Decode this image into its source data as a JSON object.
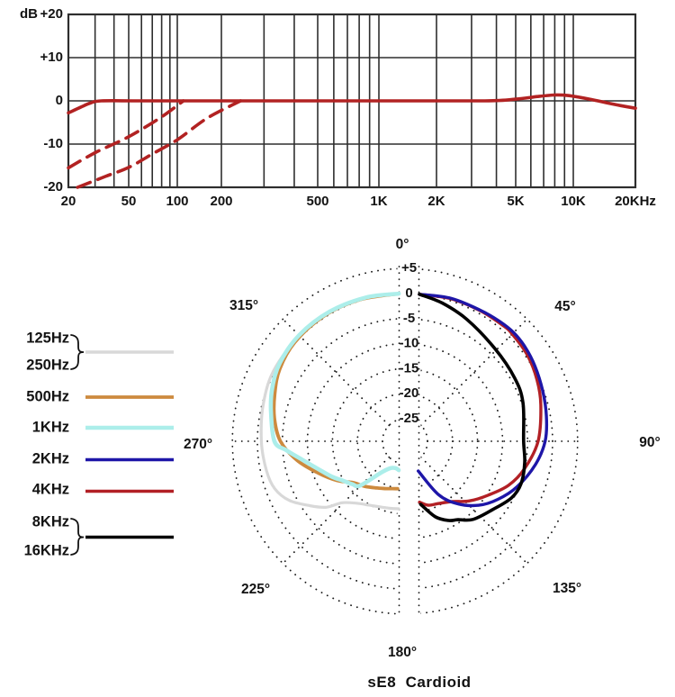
{
  "page": {
    "background": "#ffffff",
    "text_color": "#1a1a1a"
  },
  "title": "sE8  Cardioid",
  "chart_data": [
    {
      "type": "line",
      "name": "frequency_response",
      "y_unit_label": "dB",
      "xlim": [
        20,
        20000
      ],
      "ylim": [
        -20,
        20
      ],
      "grid": true,
      "grid_color": "#2e2e2e",
      "line_color": "#b22222",
      "x_ticks": [
        {
          "value": 20,
          "label": "20"
        },
        {
          "value": 50,
          "label": "50"
        },
        {
          "value": 100,
          "label": "100"
        },
        {
          "value": 200,
          "label": "200"
        },
        {
          "value": 500,
          "label": "500"
        },
        {
          "value": 1000,
          "label": "1K"
        },
        {
          "value": 2000,
          "label": "2K"
        },
        {
          "value": 5000,
          "label": "5K"
        },
        {
          "value": 10000,
          "label": "10K"
        },
        {
          "value": 20000,
          "label": "20KHz"
        }
      ],
      "y_ticks": [
        {
          "value": 20,
          "label": "+20"
        },
        {
          "value": 10,
          "label": "+10"
        },
        {
          "value": 0,
          "label": "0"
        },
        {
          "value": -10,
          "label": "-10"
        },
        {
          "value": -20,
          "label": "-20"
        }
      ],
      "x_gridlines": [
        30,
        40,
        50,
        60,
        70,
        80,
        90,
        100,
        200,
        300,
        400,
        500,
        600,
        700,
        800,
        900,
        1000,
        2000,
        3000,
        4000,
        5000,
        6000,
        7000,
        8000,
        9000,
        10000
      ],
      "series": [
        {
          "name": "on-axis frequency response",
          "style": "solid",
          "points": [
            [
              20,
              -2.8
            ],
            [
              24,
              -1.5
            ],
            [
              28,
              -0.5
            ],
            [
              33,
              0
            ],
            [
              60,
              0
            ],
            [
              200,
              0
            ],
            [
              1000,
              0
            ],
            [
              3500,
              0
            ],
            [
              5000,
              0.4
            ],
            [
              6500,
              1.0
            ],
            [
              8000,
              1.35
            ],
            [
              9500,
              1.2
            ],
            [
              12000,
              0.4
            ],
            [
              14000,
              -0.3
            ],
            [
              17000,
              -1.1
            ],
            [
              20000,
              -1.7
            ]
          ]
        },
        {
          "name": "low-cut filter (reaches 0 dB near 110 Hz)",
          "style": "dashed",
          "points": [
            [
              20,
              -15.5
            ],
            [
              30,
              -12
            ],
            [
              50,
              -8.3
            ],
            [
              80,
              -3.7
            ],
            [
              110,
              0
            ]
          ]
        },
        {
          "name": "low-cut filter (reaches 0 dB near 240 Hz)",
          "style": "dashed",
          "points": [
            [
              23,
              -20
            ],
            [
              35,
              -17.5
            ],
            [
              50,
              -15.4
            ],
            [
              70,
              -12.3
            ],
            [
              100,
              -9
            ],
            [
              160,
              -4
            ],
            [
              240,
              0
            ]
          ]
        }
      ]
    },
    {
      "type": "polar",
      "name": "polar_pattern",
      "title": "sE8  Cardioid",
      "dot_color": "#1a1a1a",
      "radial_ticks": [
        {
          "db": 5,
          "label": "+5"
        },
        {
          "db": 0,
          "label": "0"
        },
        {
          "db": -5,
          "label": "-5"
        },
        {
          "db": -10,
          "label": "-10"
        },
        {
          "db": -15,
          "label": "-15"
        },
        {
          "db": -20,
          "label": "-20"
        },
        {
          "db": -25,
          "label": "-25"
        }
      ],
      "angle_ticks": [
        {
          "deg": 0,
          "label": "0°"
        },
        {
          "deg": 45,
          "label": "45°"
        },
        {
          "deg": 90,
          "label": "90°"
        },
        {
          "deg": 135,
          "label": "135°"
        },
        {
          "deg": 180,
          "label": "180°"
        },
        {
          "deg": 225,
          "label": "225°"
        },
        {
          "deg": 270,
          "label": "270°"
        },
        {
          "deg": 315,
          "label": "315°"
        }
      ],
      "series": [
        {
          "name": "125Hz / 250Hz",
          "legend": [
            "125Hz",
            "250Hz"
          ],
          "color": "#d8d8d8",
          "width": 3.2,
          "points": [
            [
              357.6,
              0
            ],
            [
              340,
              0.2
            ],
            [
              320,
              0.4
            ],
            [
              300,
              0.3
            ],
            [
              285,
              -0.2
            ],
            [
              270,
              -0.8
            ],
            [
              258,
              -1.2
            ],
            [
              250,
              -1.8
            ],
            [
              243,
              -3.5
            ],
            [
              236,
              -6.5
            ],
            [
              230,
              -9
            ],
            [
              225.7,
              -11.9
            ],
            [
              218,
              -13.8
            ],
            [
              210,
              -14.8
            ],
            [
              200,
              -15.5
            ],
            [
              192,
              -15.8
            ],
            [
              185.3,
              -15.95
            ]
          ]
        },
        {
          "name": "500Hz",
          "legend": [
            "500Hz"
          ],
          "color": "#cd8a3e",
          "width": 3.8,
          "points": [
            [
              357.6,
              0
            ],
            [
              342,
              0.2
            ],
            [
              327,
              0.3
            ],
            [
              312,
              0.1
            ],
            [
              300,
              -0.6
            ],
            [
              290,
              -1.8
            ],
            [
              280,
              -3
            ],
            [
              270,
              -4.6
            ],
            [
              260,
              -7.6
            ],
            [
              250,
              -11.0
            ],
            [
              240,
              -13.8
            ],
            [
              231.6,
              -16.2
            ],
            [
              222,
              -17.4
            ],
            [
              212,
              -18.5
            ],
            [
              202,
              -19.3
            ],
            [
              195,
              -19.7
            ],
            [
              188.8,
              -19.9
            ]
          ]
        },
        {
          "name": "1KHz",
          "legend": [
            "1KHz"
          ],
          "color": "#aceeea",
          "width": 4.6,
          "points": [
            [
              357.6,
              0
            ],
            [
              345,
              0.25
            ],
            [
              330,
              0.45
            ],
            [
              315,
              0.45
            ],
            [
              302,
              0
            ],
            [
              292,
              -0.9
            ],
            [
              283,
              -2
            ],
            [
              270,
              -3.4
            ],
            [
              265.7,
              -5.7
            ],
            [
              260.8,
              -8.2
            ],
            [
              251.5,
              -11.5
            ],
            [
              244,
              -13.3
            ],
            [
              238.2,
              -14.7
            ],
            [
              231,
              -15.9
            ],
            [
              225.4,
              -16.9
            ],
            [
              217.3,
              -21.6
            ],
            [
              209.1,
              -23.3
            ],
            [
              200,
              -23.8
            ],
            [
              192.3,
              -23.6
            ]
          ]
        },
        {
          "name": "2KHz",
          "legend": [
            "2KHz"
          ],
          "color": "#1e16a8",
          "width": 3.4,
          "points": [
            [
              5.6,
              0
            ],
            [
              18,
              0.5
            ],
            [
              30,
              0.7
            ],
            [
              38,
              1.0
            ],
            [
              45,
              1.2
            ],
            [
              52,
              1.0
            ],
            [
              60,
              0.5
            ],
            [
              70,
              -0.2
            ],
            [
              80,
              -0.8
            ],
            [
              90,
              -1.5
            ],
            [
              100,
              -3
            ],
            [
              112,
              -5.3
            ],
            [
              122,
              -7.6
            ],
            [
              131,
              -10
            ],
            [
              140,
              -13.2
            ],
            [
              148,
              -17
            ],
            [
              156,
              -23
            ]
          ]
        },
        {
          "name": "4KHz",
          "legend": [
            "4KHz"
          ],
          "color": "#b22025",
          "width": 3.4,
          "points": [
            [
              5.6,
              0
            ],
            [
              18,
              0.4
            ],
            [
              30,
              0.6
            ],
            [
              40,
              0.8
            ],
            [
              45,
              0.8
            ],
            [
              55,
              0.4
            ],
            [
              65,
              -0.4
            ],
            [
              75,
              -1.4
            ],
            [
              90,
              -2.9
            ],
            [
              103,
              -5
            ],
            [
              113,
              -7
            ],
            [
              123,
              -9.7
            ],
            [
              133,
              -12
            ],
            [
              142,
              -14.2
            ],
            [
              152,
              -15.4
            ],
            [
              160,
              -15.9
            ],
            [
              166.6,
              -17
            ]
          ]
        },
        {
          "name": "8KHz / 16KHz",
          "legend": [
            "8KHz",
            "16KHz"
          ],
          "color": "#000000",
          "width": 3.6,
          "points": [
            [
              5.6,
              0
            ],
            [
              15,
              -0.9
            ],
            [
              27,
              -2.2
            ],
            [
              44,
              -3.7
            ],
            [
              60,
              -4.2
            ],
            [
              72,
              -4.7
            ],
            [
              90,
              -5.8
            ],
            [
              100,
              -5.2
            ],
            [
              110,
              -4.8
            ],
            [
              118,
              -5.4
            ],
            [
              128,
              -7.3
            ],
            [
              139,
              -8.8
            ],
            [
              146,
              -10.6
            ],
            [
              151,
              -11.4
            ],
            [
              158,
              -13.2
            ],
            [
              166,
              -16.5
            ]
          ]
        }
      ]
    }
  ]
}
